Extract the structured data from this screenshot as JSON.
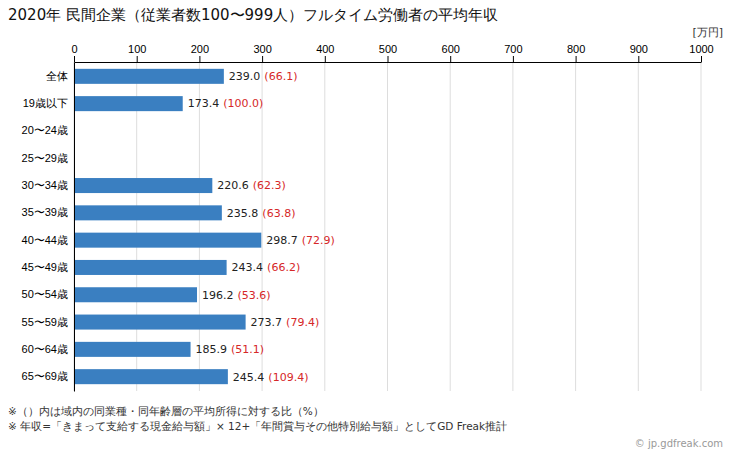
{
  "chart_data": {
    "type": "bar",
    "orientation": "horizontal",
    "title": "2020年 民間企業（従業者数100〜999人）フルタイム労働者の平均年収",
    "xlabel": "[万円]",
    "categories": [
      "全体",
      "19歳以下",
      "20〜24歳",
      "25〜29歳",
      "30〜34歳",
      "35〜39歳",
      "40〜44歳",
      "45〜49歳",
      "50〜54歳",
      "55〜59歳",
      "60〜64歳",
      "65〜69歳"
    ],
    "values": [
      239.0,
      173.4,
      null,
      null,
      220.6,
      235.8,
      298.7,
      243.4,
      196.2,
      273.7,
      185.9,
      245.4
    ],
    "value_labels": [
      "239.0",
      "173.4",
      null,
      null,
      "220.6",
      "235.8",
      "298.7",
      "243.4",
      "196.2",
      "273.7",
      "185.9",
      "245.4"
    ],
    "percentages": [
      66.1,
      100.0,
      null,
      null,
      62.3,
      63.8,
      72.9,
      66.2,
      53.6,
      79.4,
      51.1,
      109.4
    ],
    "percentage_labels": [
      "(66.1)",
      "(100.0)",
      null,
      null,
      "(62.3)",
      "(63.8)",
      "(72.9)",
      "(66.2)",
      "(53.6)",
      "(79.4)",
      "(51.1)",
      "(109.4)"
    ],
    "color": "#3a7fc1",
    "xlim": [
      0,
      1000
    ],
    "xticks": [
      0,
      100,
      200,
      300,
      400,
      500,
      600,
      700,
      800,
      900,
      1000
    ],
    "grid": true,
    "data_labels": true,
    "notes": [
      "※（）内は域内の同業種・同年齢層の平均所得に対する比（%）",
      "※ 年収=「きまって支給する現金給与額」× 12+「年間賞与その他特別給与額」としてGD Freak推計"
    ],
    "source": "© jp.gdfreak.com"
  }
}
